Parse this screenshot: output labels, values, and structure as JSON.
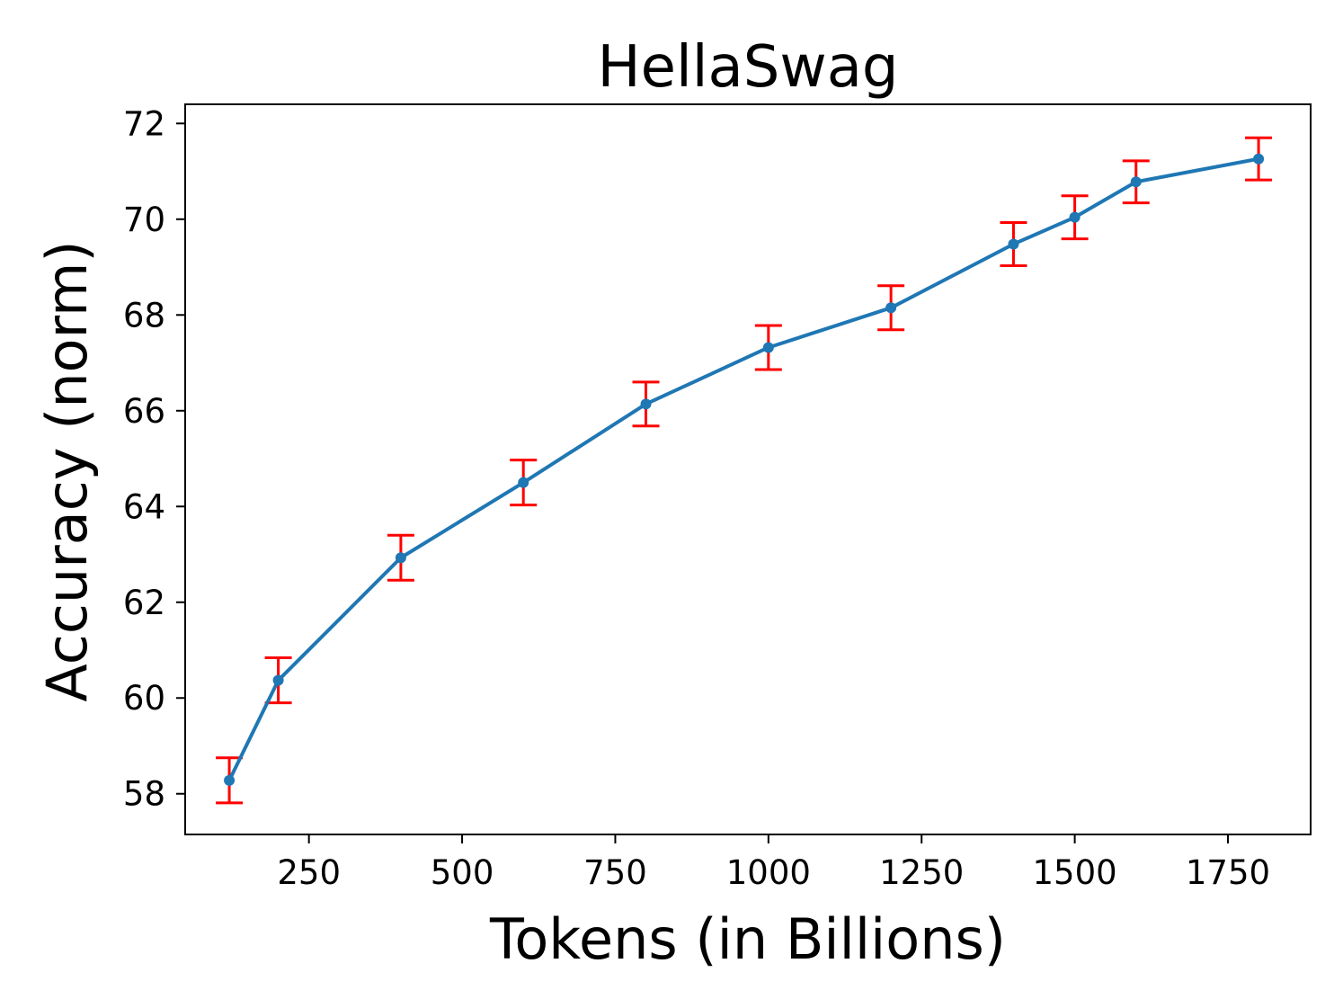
{
  "chart_data": {
    "type": "line",
    "title": "HellaSwag",
    "xlabel": "Tokens (in Billions)",
    "ylabel": "Accuracy (norm)",
    "xlim": [
      48,
      1885
    ],
    "ylim": [
      57.15,
      72.4
    ],
    "x_ticks": [
      250,
      500,
      750,
      1000,
      1250,
      1500,
      1750
    ],
    "y_ticks": [
      58,
      60,
      62,
      64,
      66,
      68,
      70,
      72
    ],
    "grid": false,
    "legend": "none",
    "series": [
      {
        "line_color": "#1f77b4",
        "error_color": "#ff0000",
        "x": [
          120,
          200,
          400,
          600,
          800,
          1000,
          1200,
          1400,
          1500,
          1600,
          1800
        ],
        "y": [
          58.28,
          60.37,
          62.93,
          64.5,
          66.14,
          67.32,
          68.15,
          69.48,
          70.04,
          70.78,
          71.26
        ],
        "error": [
          0.47,
          0.47,
          0.47,
          0.47,
          0.46,
          0.46,
          0.46,
          0.45,
          0.45,
          0.44,
          0.44
        ]
      }
    ]
  }
}
